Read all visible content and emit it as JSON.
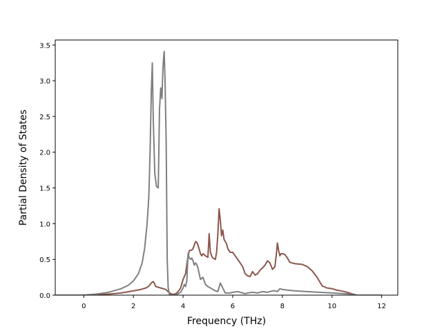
{
  "chart_data": {
    "type": "line",
    "title": "",
    "xlabel": "Frequency (THz)",
    "ylabel": "Partial Density of States",
    "xlim": [
      -1.15,
      12.65
    ],
    "ylim": [
      0,
      3.57
    ],
    "xticks": [
      0,
      2,
      4,
      6,
      8,
      10,
      12
    ],
    "yticks": [
      0.0,
      0.5,
      1.0,
      1.5,
      2.0,
      2.5,
      3.0,
      3.5
    ],
    "xtick_labels": [
      "0",
      "2",
      "4",
      "6",
      "8",
      "10",
      "12"
    ],
    "ytick_labels": [
      "0.0",
      "0.5",
      "1.0",
      "1.5",
      "2.0",
      "2.5",
      "3.0",
      "3.5"
    ],
    "grid": false,
    "legend": false,
    "series": [
      {
        "color": "#8c564b",
        "x": [
          -1.2,
          0.0,
          0.5,
          1.0,
          1.5,
          2.0,
          2.3,
          2.5,
          2.6,
          2.7,
          2.75,
          2.8,
          2.85,
          2.9,
          3.0,
          3.1,
          3.2,
          3.3,
          3.4,
          3.5,
          3.6,
          3.7,
          3.8,
          3.9,
          4.0,
          4.1,
          4.2,
          4.25,
          4.3,
          4.35,
          4.4,
          4.45,
          4.5,
          4.55,
          4.6,
          4.7,
          4.75,
          4.8,
          4.9,
          5.0,
          5.05,
          5.1,
          5.15,
          5.2,
          5.3,
          5.35,
          5.4,
          5.45,
          5.5,
          5.55,
          5.6,
          5.65,
          5.7,
          5.75,
          5.8,
          5.9,
          6.0,
          6.1,
          6.2,
          6.3,
          6.4,
          6.5,
          6.6,
          6.7,
          6.8,
          6.9,
          7.0,
          7.1,
          7.2,
          7.3,
          7.4,
          7.5,
          7.6,
          7.7,
          7.75,
          7.8,
          7.85,
          7.9,
          7.95,
          8.0,
          8.1,
          8.2,
          8.3,
          8.5,
          8.8,
          9.0,
          9.2,
          9.4,
          9.6,
          9.8,
          10.0,
          10.2,
          10.5,
          10.7,
          10.9,
          11.0,
          12.0
        ],
        "y": [
          0.0,
          0.0,
          0.005,
          0.015,
          0.03,
          0.06,
          0.08,
          0.1,
          0.12,
          0.16,
          0.18,
          0.19,
          0.16,
          0.12,
          0.11,
          0.1,
          0.09,
          0.08,
          0.05,
          0.02,
          0.01,
          0.02,
          0.05,
          0.1,
          0.22,
          0.3,
          0.55,
          0.62,
          0.63,
          0.63,
          0.65,
          0.7,
          0.75,
          0.74,
          0.7,
          0.58,
          0.55,
          0.58,
          0.55,
          0.53,
          0.86,
          0.6,
          0.55,
          0.52,
          0.5,
          0.6,
          0.85,
          1.21,
          1.05,
          0.83,
          0.91,
          0.78,
          0.75,
          0.72,
          0.65,
          0.6,
          0.6,
          0.55,
          0.5,
          0.45,
          0.4,
          0.3,
          0.27,
          0.26,
          0.33,
          0.28,
          0.3,
          0.35,
          0.38,
          0.42,
          0.48,
          0.45,
          0.36,
          0.4,
          0.55,
          0.73,
          0.62,
          0.55,
          0.58,
          0.58,
          0.57,
          0.52,
          0.46,
          0.44,
          0.43,
          0.4,
          0.34,
          0.25,
          0.13,
          0.1,
          0.09,
          0.07,
          0.05,
          0.03,
          0.01,
          0.0,
          0.0
        ]
      },
      {
        "color": "#7f7f7f",
        "x": [
          -1.2,
          0.0,
          0.5,
          1.0,
          1.5,
          1.8,
          2.0,
          2.2,
          2.35,
          2.45,
          2.55,
          2.62,
          2.67,
          2.72,
          2.76,
          2.8,
          2.86,
          2.93,
          3.0,
          3.05,
          3.1,
          3.15,
          3.18,
          3.21,
          3.24,
          3.28,
          3.32,
          3.36,
          3.4,
          3.45,
          3.5,
          3.6,
          3.75,
          3.9,
          4.0,
          4.05,
          4.1,
          4.15,
          4.2,
          4.25,
          4.3,
          4.35,
          4.4,
          4.45,
          4.5,
          4.55,
          4.6,
          4.65,
          4.7,
          4.8,
          4.9,
          5.0,
          5.1,
          5.2,
          5.3,
          5.4,
          5.5,
          5.6,
          5.7,
          5.8,
          5.9,
          6.0,
          6.2,
          6.4,
          6.5,
          6.6,
          6.8,
          7.0,
          7.2,
          7.4,
          7.6,
          7.7,
          7.8,
          7.9,
          8.0,
          8.2,
          8.5,
          9.0,
          9.5,
          10.0,
          10.5,
          10.9,
          11.0,
          12.0
        ],
        "y": [
          0.0,
          0.0,
          0.015,
          0.04,
          0.09,
          0.14,
          0.2,
          0.3,
          0.45,
          0.65,
          1.0,
          1.38,
          2.0,
          2.85,
          3.25,
          2.45,
          1.7,
          1.52,
          1.5,
          2.6,
          2.9,
          2.75,
          3.1,
          3.3,
          3.41,
          2.9,
          2.1,
          0.5,
          0.1,
          0.01,
          0.0,
          0.0,
          0.01,
          0.04,
          0.1,
          0.15,
          0.12,
          0.2,
          0.58,
          0.52,
          0.5,
          0.52,
          0.48,
          0.42,
          0.45,
          0.43,
          0.38,
          0.3,
          0.22,
          0.25,
          0.15,
          0.12,
          0.1,
          0.08,
          0.06,
          0.05,
          0.17,
          0.1,
          0.03,
          0.03,
          0.03,
          0.04,
          0.05,
          0.03,
          0.02,
          0.03,
          0.04,
          0.03,
          0.05,
          0.04,
          0.06,
          0.06,
          0.05,
          0.09,
          0.08,
          0.07,
          0.06,
          0.05,
          0.04,
          0.03,
          0.02,
          0.01,
          0.0,
          0.0
        ]
      }
    ]
  }
}
